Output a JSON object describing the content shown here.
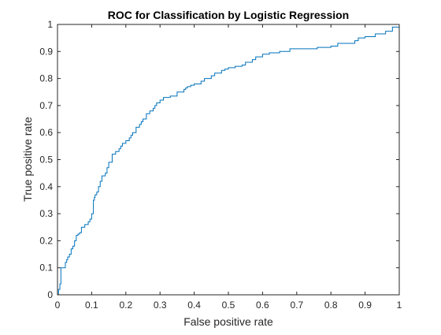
{
  "chart_data": {
    "type": "line",
    "title": "ROC for Classification by Logistic Regression",
    "xlabel": "False positive rate",
    "ylabel": "True positive rate",
    "xlim": [
      0,
      1
    ],
    "ylim": [
      0,
      1
    ],
    "xticks": [
      "0",
      "0.1",
      "0.2",
      "0.3",
      "0.4",
      "0.5",
      "0.6",
      "0.7",
      "0.8",
      "0.9",
      "1"
    ],
    "yticks": [
      "0",
      "0.1",
      "0.2",
      "0.3",
      "0.4",
      "0.5",
      "0.6",
      "0.7",
      "0.8",
      "0.9",
      "1"
    ],
    "grid": false,
    "line_color": "#0072BD",
    "series": [
      {
        "x": [
          0,
          0.003,
          0.003,
          0.007,
          0.007,
          0.01,
          0.01,
          0.02,
          0.023,
          0.027,
          0.03,
          0.035,
          0.04,
          0.045,
          0.05,
          0.055,
          0.06,
          0.065,
          0.07,
          0.08,
          0.09,
          0.095,
          0.1,
          0.105,
          0.108,
          0.11,
          0.115,
          0.12,
          0.125,
          0.13,
          0.14,
          0.145,
          0.15,
          0.16,
          0.17,
          0.18,
          0.185,
          0.19,
          0.2,
          0.21,
          0.215,
          0.22,
          0.23,
          0.24,
          0.245,
          0.25,
          0.26,
          0.27,
          0.28,
          0.285,
          0.29,
          0.3,
          0.31,
          0.32,
          0.33,
          0.35,
          0.37,
          0.375,
          0.38,
          0.39,
          0.4,
          0.42,
          0.43,
          0.45,
          0.46,
          0.48,
          0.49,
          0.5,
          0.52,
          0.54,
          0.55,
          0.57,
          0.58,
          0.6,
          0.62,
          0.65,
          0.68,
          0.75,
          0.76,
          0.8,
          0.82,
          0.85,
          0.87,
          0.88,
          0.9,
          0.93,
          0.96,
          0.98,
          1
        ],
        "y": [
          0,
          0,
          0.02,
          0.02,
          0.04,
          0.04,
          0.1,
          0.1,
          0.12,
          0.13,
          0.14,
          0.15,
          0.17,
          0.18,
          0.2,
          0.22,
          0.225,
          0.23,
          0.25,
          0.26,
          0.27,
          0.28,
          0.3,
          0.35,
          0.36,
          0.37,
          0.38,
          0.4,
          0.42,
          0.44,
          0.45,
          0.47,
          0.49,
          0.52,
          0.53,
          0.54,
          0.55,
          0.56,
          0.57,
          0.58,
          0.59,
          0.6,
          0.62,
          0.63,
          0.64,
          0.65,
          0.67,
          0.68,
          0.69,
          0.7,
          0.71,
          0.72,
          0.73,
          0.73,
          0.735,
          0.75,
          0.76,
          0.765,
          0.77,
          0.775,
          0.78,
          0.79,
          0.8,
          0.81,
          0.82,
          0.83,
          0.835,
          0.84,
          0.845,
          0.85,
          0.86,
          0.87,
          0.88,
          0.89,
          0.895,
          0.9,
          0.91,
          0.91,
          0.915,
          0.92,
          0.93,
          0.93,
          0.94,
          0.95,
          0.955,
          0.965,
          0.975,
          0.99,
          1
        ]
      }
    ]
  }
}
